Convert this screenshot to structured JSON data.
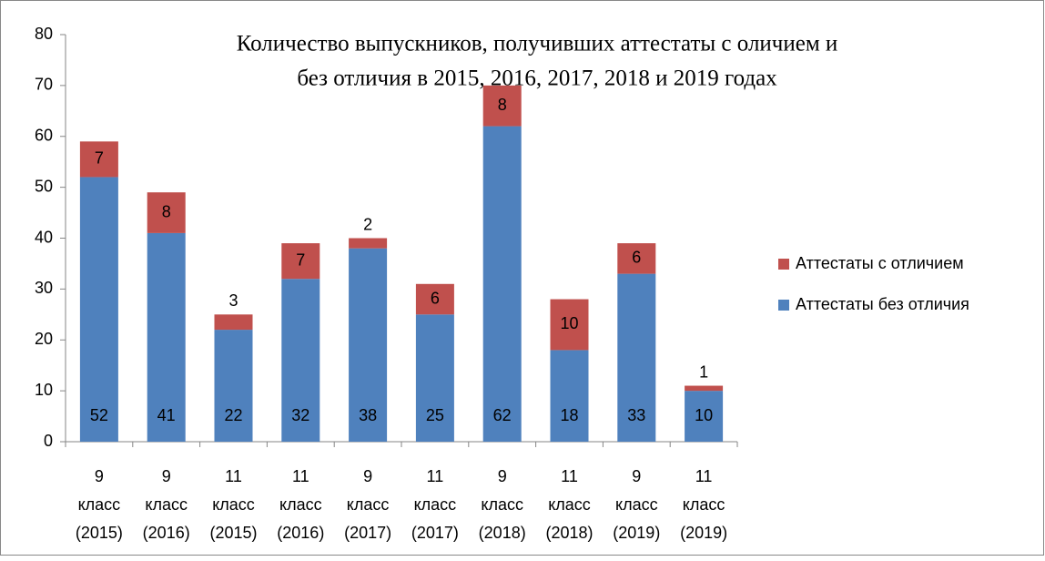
{
  "chart_data": {
    "type": "stacked_bar",
    "title": [
      "Количество выпускников, получивших аттестаты с оличием  и",
      "без отличия в 2015, 2016, 2017, 2018 и 2019  годах"
    ],
    "categories": [
      [
        "9",
        "класс",
        "(2015)"
      ],
      [
        "9",
        "класс",
        "(2016)"
      ],
      [
        "11",
        "класс",
        "(2015)"
      ],
      [
        "11",
        "класс",
        "(2016)"
      ],
      [
        "9",
        "класс",
        "(2017)"
      ],
      [
        "11",
        "класс",
        "(2017)"
      ],
      [
        "9",
        "класс",
        "(2018)"
      ],
      [
        "11",
        "класс",
        "(2018)"
      ],
      [
        "9",
        "класс",
        "(2019)"
      ],
      [
        "11",
        "класс",
        "(2019)"
      ]
    ],
    "series": [
      {
        "name": "Аттестаты без отличия",
        "color": "#4f81bd",
        "values": [
          52,
          41,
          22,
          32,
          38,
          25,
          62,
          18,
          33,
          10
        ]
      },
      {
        "name": "Аттестаты с отличием",
        "color": "#c0504d",
        "values": [
          7,
          8,
          3,
          7,
          2,
          6,
          8,
          10,
          6,
          1
        ]
      }
    ],
    "ylim": [
      0,
      80
    ],
    "yticks": [
      0,
      10,
      20,
      30,
      40,
      50,
      60,
      70,
      80
    ],
    "grid": false,
    "legend": "right"
  }
}
